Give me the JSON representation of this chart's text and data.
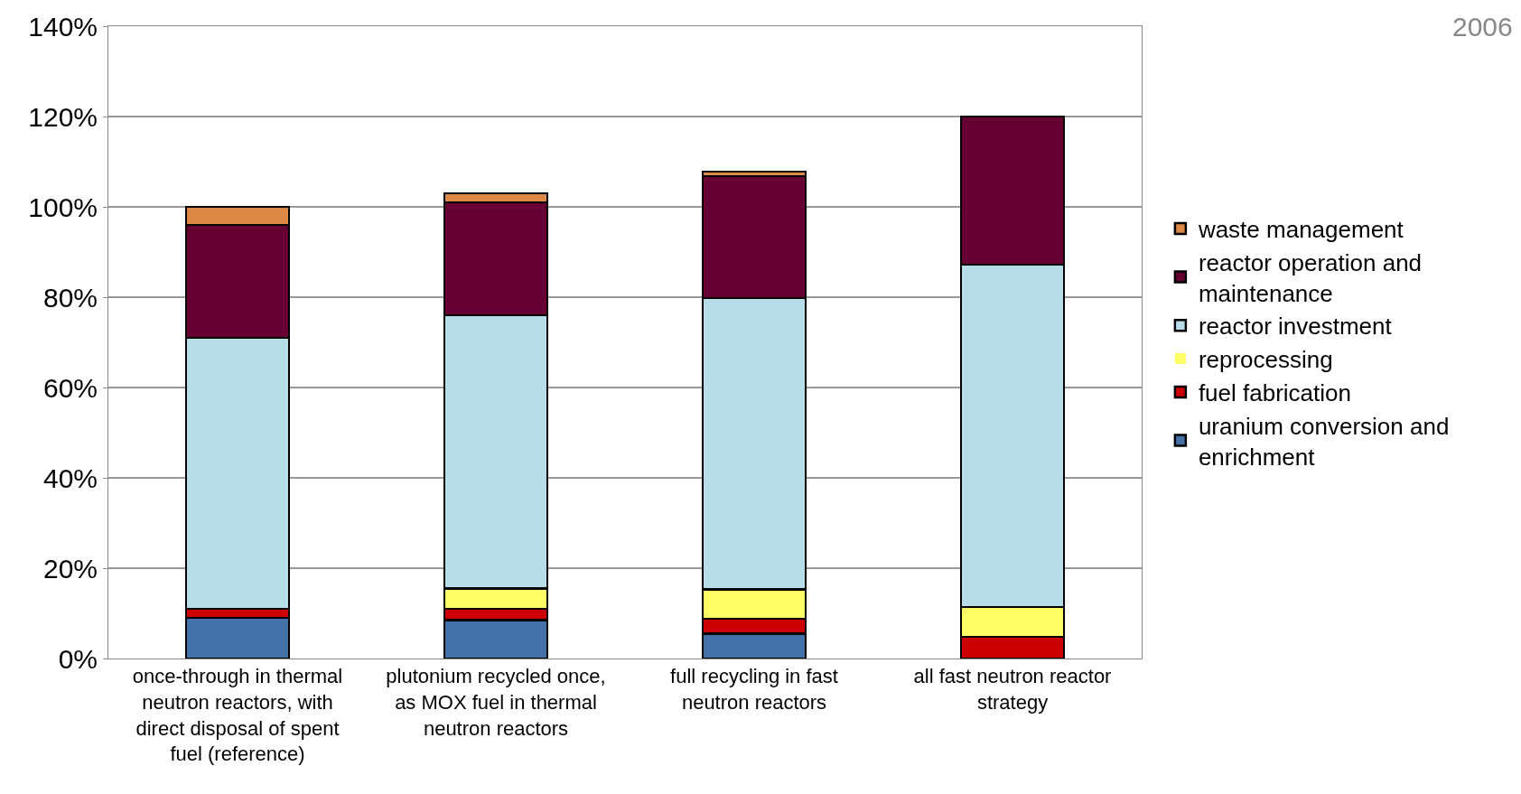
{
  "chart_data": {
    "type": "bar",
    "stacked": true,
    "categories": [
      "once-through in thermal neutron reactors, with direct disposal of spent fuel (reference)",
      "plutonium recycled once, as MOX fuel in thermal neutron reactors",
      "full recycling in fast neutron reactors",
      "all fast neutron reactor strategy"
    ],
    "series": [
      {
        "name": "uranium conversion and enrichment",
        "color": "#4472a8",
        "values": [
          9,
          8.5,
          5.5,
          0
        ]
      },
      {
        "name": "fuel fabrication",
        "color": "#cc0000",
        "values": [
          2,
          2.5,
          3.3,
          4.8
        ]
      },
      {
        "name": "reprocessing",
        "color": "#ffff66",
        "values": [
          0,
          4.5,
          6.5,
          6.6
        ]
      },
      {
        "name": "reactor investment",
        "color": "#b7dde8",
        "values": [
          60,
          60.5,
          64.5,
          75.8
        ]
      },
      {
        "name": "reactor operation and maintenance",
        "color": "#660033",
        "values": [
          25,
          25,
          27,
          32.8
        ]
      },
      {
        "name": "waste management",
        "color": "#dd8844",
        "values": [
          4,
          2,
          1,
          0
        ]
      }
    ],
    "ylim": [
      0,
      140
    ],
    "yticks": [
      {
        "value": 0,
        "label": "0%"
      },
      {
        "value": 20,
        "label": "20%"
      },
      {
        "value": 40,
        "label": "40%"
      },
      {
        "value": 60,
        "label": "60%"
      },
      {
        "value": 80,
        "label": "80%"
      },
      {
        "value": 100,
        "label": "100%"
      },
      {
        "value": 120,
        "label": "120%"
      },
      {
        "value": 140,
        "label": "140%"
      }
    ],
    "grid": "y",
    "legend": "right",
    "annotations": [
      "2006"
    ]
  }
}
